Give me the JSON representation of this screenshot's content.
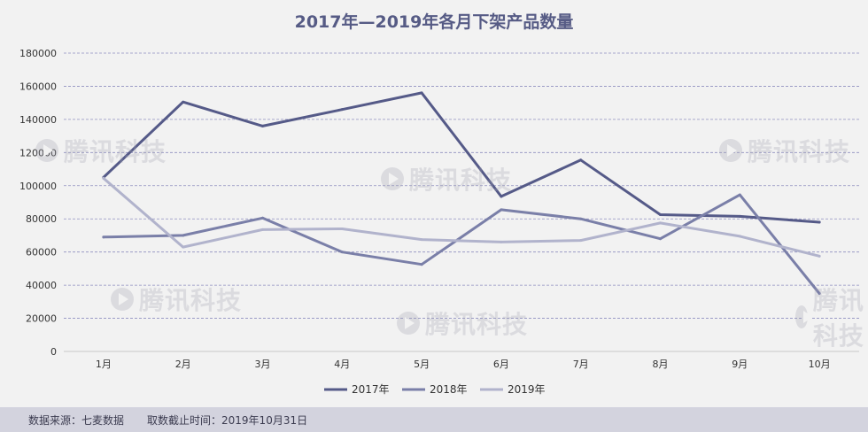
{
  "chart_data": {
    "type": "line",
    "title": "2017年—2019年各月下架产品数量",
    "categories": [
      "1月",
      "2月",
      "3月",
      "4月",
      "5月",
      "6月",
      "7月",
      "8月",
      "9月",
      "10月"
    ],
    "ylim": [
      0,
      180000
    ],
    "yticks": [
      0,
      20000,
      40000,
      60000,
      80000,
      100000,
      120000,
      140000,
      160000,
      180000
    ],
    "grid": true,
    "legend_position": "bottom-center",
    "series": [
      {
        "name": "2017年",
        "color": "#555a88",
        "values": [
          105000,
          150500,
          136000,
          146000,
          156000,
          93500,
          115500,
          82500,
          81500,
          78000
        ]
      },
      {
        "name": "2018年",
        "color": "#7a7fa8",
        "values": [
          69000,
          70000,
          80500,
          60000,
          52500,
          85500,
          80000,
          68000,
          94500,
          35000
        ]
      },
      {
        "name": "2019年",
        "color": "#b1b3cc",
        "values": [
          104500,
          63000,
          73500,
          74000,
          67500,
          66000,
          67000,
          77500,
          69500,
          57500
        ]
      }
    ]
  },
  "footer": {
    "source": "数据来源：七麦数据",
    "cutoff": "取数截止时间：2019年10月31日"
  },
  "watermark": {
    "text": "腾讯科技"
  }
}
